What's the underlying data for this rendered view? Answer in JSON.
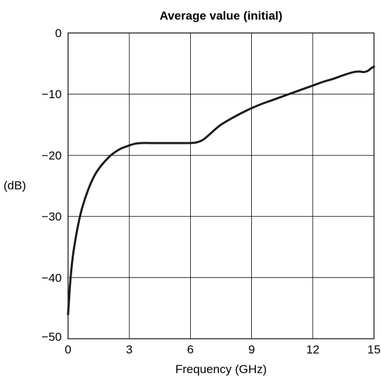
{
  "chart_data": {
    "type": "line",
    "title": "Average value (initial)",
    "xlabel": "Frequency (GHz)",
    "ylabel": "(dB)",
    "xlim": [
      0,
      15
    ],
    "ylim": [
      -50,
      0
    ],
    "x_ticks": [
      0,
      3,
      6,
      9,
      12,
      15
    ],
    "x_tick_labels": [
      "0",
      "3",
      "6",
      "9",
      "12",
      "15"
    ],
    "y_ticks": [
      0,
      -10,
      -20,
      -30,
      -40,
      -50
    ],
    "y_tick_labels": [
      "0",
      "−10",
      "−20",
      "−30",
      "−40",
      "−50"
    ],
    "grid": true,
    "line_color": "#1a1a1a",
    "series": [
      {
        "x": [
          0.0,
          0.05,
          0.1,
          0.2,
          0.3,
          0.5,
          0.7,
          1.0,
          1.3,
          1.6,
          2.0,
          2.3,
          2.6,
          3.0,
          3.3,
          3.6,
          4.0,
          4.5,
          5.0,
          5.5,
          6.0,
          6.3,
          6.6,
          6.9,
          7.2,
          7.5,
          8.0,
          8.5,
          9.0,
          9.5,
          10.0,
          10.5,
          11.0,
          11.5,
          12.0,
          12.5,
          13.0,
          13.5,
          14.0,
          14.3,
          14.5,
          14.7,
          14.85,
          15.0
        ],
        "y": [
          -46.0,
          -43.5,
          -41.0,
          -37.5,
          -35.0,
          -31.3,
          -28.5,
          -25.5,
          -23.3,
          -21.8,
          -20.3,
          -19.5,
          -18.9,
          -18.4,
          -18.1,
          -18.0,
          -18.0,
          -18.0,
          -18.0,
          -18.0,
          -18.0,
          -17.9,
          -17.5,
          -16.7,
          -15.8,
          -15.0,
          -14.0,
          -13.1,
          -12.3,
          -11.6,
          -11.0,
          -10.4,
          -9.8,
          -9.2,
          -8.6,
          -8.0,
          -7.5,
          -6.9,
          -6.4,
          -6.3,
          -6.4,
          -6.2,
          -5.8,
          -5.5
        ]
      }
    ]
  }
}
